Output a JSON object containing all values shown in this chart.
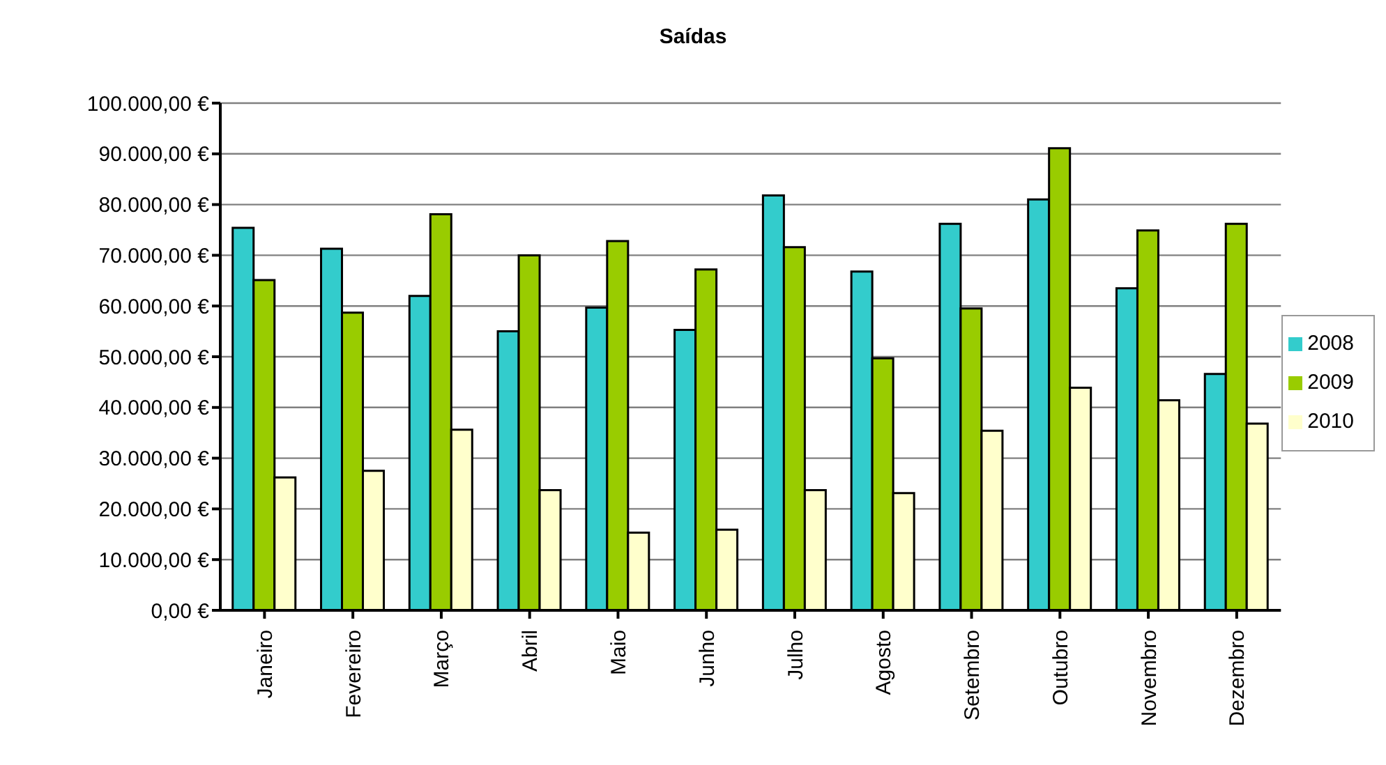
{
  "chart_data": {
    "type": "bar",
    "title": "Saídas",
    "categories": [
      "Janeiro",
      "Fevereiro",
      "Março",
      "Abril",
      "Maio",
      "Junho",
      "Julho",
      "Agosto",
      "Setembro",
      "Outubro",
      "Novembro",
      "Dezembro"
    ],
    "series": [
      {
        "name": "2008",
        "color": "#33cccc",
        "values": [
          75400,
          71300,
          62000,
          55000,
          59700,
          55300,
          81800,
          66800,
          76200,
          81000,
          63500,
          46600
        ]
      },
      {
        "name": "2009",
        "color": "#99cc00",
        "values": [
          65100,
          58700,
          78100,
          70000,
          72800,
          67200,
          71600,
          49700,
          59500,
          91100,
          74900,
          76200
        ]
      },
      {
        "name": "2010",
        "color": "#ffffcc",
        "values": [
          26200,
          27500,
          35600,
          23700,
          15300,
          15900,
          23700,
          23100,
          35400,
          43900,
          41400,
          36800
        ]
      }
    ],
    "ylim": [
      0,
      100000
    ],
    "yticks": [
      {
        "value": 0,
        "label": "0,00 €"
      },
      {
        "value": 10000,
        "label": "10.000,00 €"
      },
      {
        "value": 20000,
        "label": "20.000,00 €"
      },
      {
        "value": 30000,
        "label": "30.000,00 €"
      },
      {
        "value": 40000,
        "label": "40.000,00 €"
      },
      {
        "value": 50000,
        "label": "50.000,00 €"
      },
      {
        "value": 60000,
        "label": "60.000,00 €"
      },
      {
        "value": 70000,
        "label": "70.000,00 €"
      },
      {
        "value": 80000,
        "label": "80.000,00 €"
      },
      {
        "value": 90000,
        "label": "90.000,00 €"
      },
      {
        "value": 100000,
        "label": "100.000,00 €"
      }
    ],
    "grid": "y",
    "legend": "right"
  }
}
